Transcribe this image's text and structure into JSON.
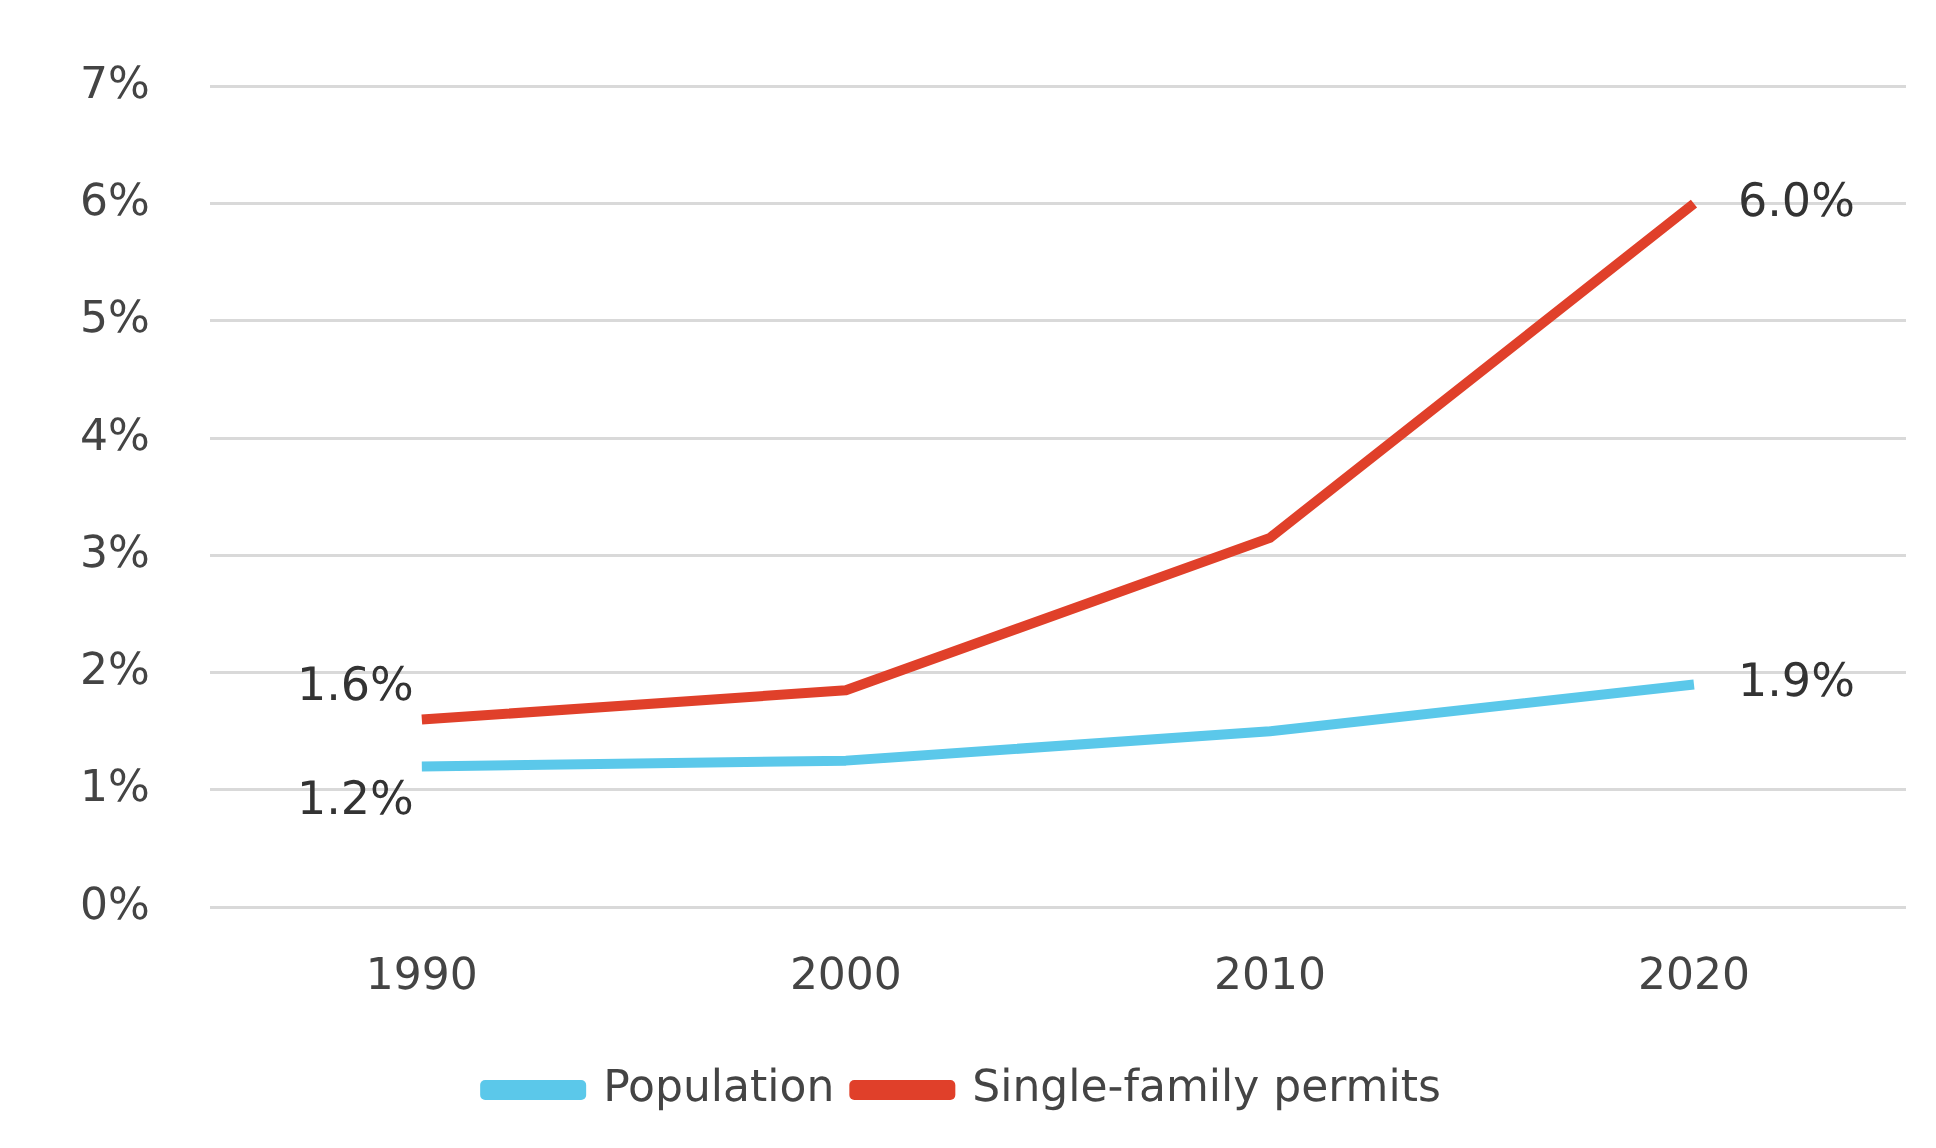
{
  "chart_data": {
    "type": "line",
    "categories": [
      "1990",
      "2000",
      "2010",
      "2020"
    ],
    "series": [
      {
        "name": "Population",
        "color": "#5bc8ea",
        "values": [
          1.2,
          1.25,
          1.5,
          1.9
        ],
        "value_labels": [
          "1.2%",
          null,
          null,
          "1.9%"
        ]
      },
      {
        "name": "Single-family permits",
        "color": "#e0402a",
        "values": [
          1.6,
          1.85,
          3.15,
          6.0
        ],
        "value_labels": [
          "1.6%",
          null,
          null,
          "6.0%"
        ]
      }
    ],
    "ylim": [
      0,
      7
    ],
    "yticks": [
      {
        "value": 0,
        "label": "0%"
      },
      {
        "value": 1,
        "label": "1%"
      },
      {
        "value": 2,
        "label": "2%"
      },
      {
        "value": 3,
        "label": "3%"
      },
      {
        "value": 4,
        "label": "4%"
      },
      {
        "value": 5,
        "label": "5%"
      },
      {
        "value": 6,
        "label": "6%"
      },
      {
        "value": 7,
        "label": "7%"
      }
    ],
    "grid": "y",
    "legend": "bottom",
    "marker": "none",
    "line_style": "solid"
  }
}
